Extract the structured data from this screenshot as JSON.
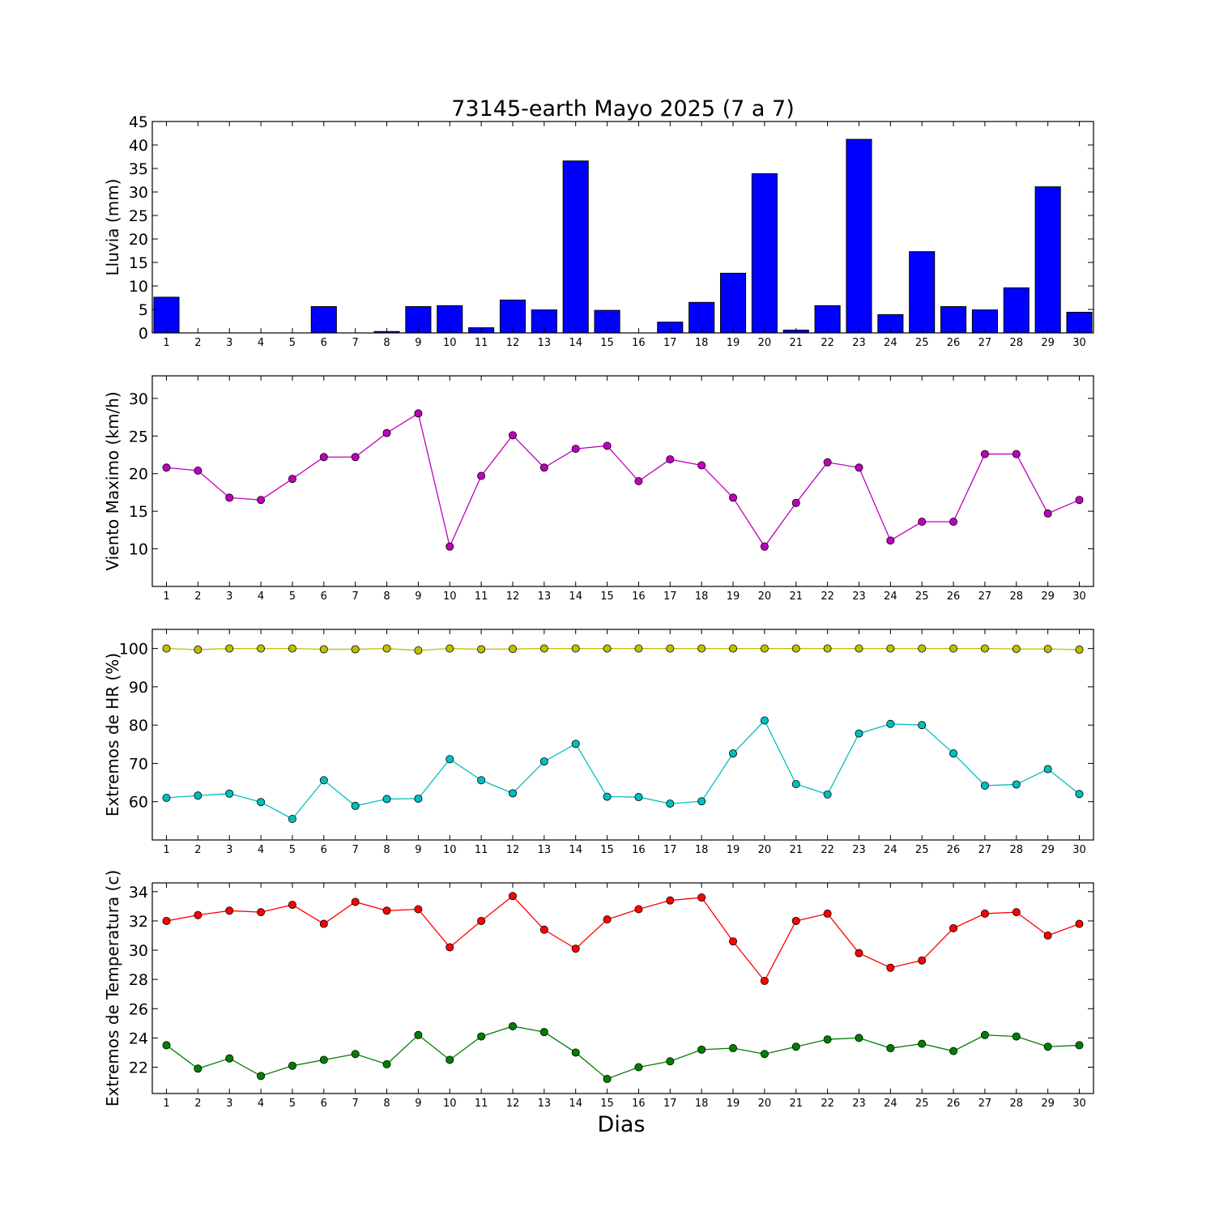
{
  "chart_data": [
    {
      "type": "bar",
      "title": "73145-earth Mayo 2025  (7 a 7)",
      "ylabel": "Lluvia (mm)",
      "xlabel": "",
      "x": [
        1,
        2,
        3,
        4,
        5,
        6,
        7,
        8,
        9,
        10,
        11,
        12,
        13,
        14,
        15,
        16,
        17,
        18,
        19,
        20,
        21,
        22,
        23,
        24,
        25,
        26,
        27,
        28,
        29,
        30
      ],
      "ylim": [
        0,
        45
      ],
      "yticks": [
        0,
        5,
        10,
        15,
        20,
        25,
        30,
        35,
        40,
        45
      ],
      "colors": {
        "bar": "#0000ff"
      },
      "values": [
        7.6,
        0,
        0,
        0,
        0,
        5.6,
        0,
        0.3,
        5.6,
        5.8,
        1.1,
        7.0,
        4.9,
        36.6,
        4.8,
        0,
        2.3,
        6.5,
        12.7,
        33.9,
        0.6,
        5.8,
        41.2,
        3.9,
        17.3,
        5.6,
        4.9,
        9.6,
        31.1,
        4.4
      ]
    },
    {
      "type": "line",
      "ylabel": "Viento Maximo (km/h)",
      "xlabel": "",
      "x": [
        1,
        2,
        3,
        4,
        5,
        6,
        7,
        8,
        9,
        10,
        11,
        12,
        13,
        14,
        15,
        16,
        17,
        18,
        19,
        20,
        21,
        22,
        23,
        24,
        25,
        26,
        27,
        28,
        29,
        30
      ],
      "ylim": [
        5,
        33
      ],
      "yticks": [
        10,
        15,
        20,
        25,
        30
      ],
      "series": [
        {
          "color": "#bf00bf",
          "values": [
            20.8,
            20.4,
            16.8,
            16.5,
            19.3,
            22.2,
            22.2,
            25.4,
            28.0,
            10.3,
            19.7,
            25.1,
            20.8,
            23.3,
            23.7,
            19.0,
            21.9,
            21.1,
            16.8,
            10.3,
            16.1,
            21.5,
            20.8,
            11.1,
            13.6,
            13.6,
            22.6,
            22.6,
            14.7,
            16.5
          ]
        }
      ]
    },
    {
      "type": "line",
      "ylabel": "Extremos de HR (%)",
      "xlabel": "",
      "x": [
        1,
        2,
        3,
        4,
        5,
        6,
        7,
        8,
        9,
        10,
        11,
        12,
        13,
        14,
        15,
        16,
        17,
        18,
        19,
        20,
        21,
        22,
        23,
        24,
        25,
        26,
        27,
        28,
        29,
        30
      ],
      "ylim": [
        50,
        105
      ],
      "yticks": [
        60,
        70,
        80,
        90,
        100
      ],
      "series": [
        {
          "color": "#bfbf00",
          "values": [
            100,
            99.7,
            100,
            100,
            100,
            99.8,
            99.8,
            100,
            99.5,
            100,
            99.8,
            99.9,
            100,
            100,
            100,
            100,
            100,
            100,
            100,
            100,
            100,
            100,
            100,
            100,
            100,
            100,
            100,
            99.9,
            99.9,
            99.7
          ]
        },
        {
          "color": "#00bfbf",
          "values": [
            61,
            61.6,
            62.1,
            59.9,
            55.5,
            65.6,
            58.9,
            60.7,
            60.8,
            71.1,
            65.6,
            62.2,
            70.5,
            75.1,
            61.3,
            61.2,
            59.5,
            60.1,
            72.6,
            81.2,
            64.6,
            61.9,
            77.8,
            80.3,
            80.0,
            72.6,
            64.2,
            64.5,
            68.5,
            62.0
          ]
        }
      ]
    },
    {
      "type": "line",
      "ylabel": "Extremos de Temperatura (c)",
      "xlabel": "Dias",
      "x": [
        1,
        2,
        3,
        4,
        5,
        6,
        7,
        8,
        9,
        10,
        11,
        12,
        13,
        14,
        15,
        16,
        17,
        18,
        19,
        20,
        21,
        22,
        23,
        24,
        25,
        26,
        27,
        28,
        29,
        30
      ],
      "ylim": [
        20.2,
        34.6
      ],
      "yticks": [
        22,
        24,
        26,
        28,
        30,
        32,
        34
      ],
      "series": [
        {
          "color": "#ff0000",
          "values": [
            32.0,
            32.4,
            32.7,
            32.6,
            33.1,
            31.8,
            33.3,
            32.7,
            32.8,
            30.2,
            32.0,
            33.7,
            31.4,
            30.1,
            32.1,
            32.8,
            33.4,
            33.6,
            30.6,
            27.9,
            32.0,
            32.5,
            29.8,
            28.8,
            29.3,
            31.5,
            32.5,
            32.6,
            31.0,
            31.8
          ]
        },
        {
          "color": "#007f00",
          "values": [
            23.5,
            21.9,
            22.6,
            21.4,
            22.1,
            22.5,
            22.9,
            22.2,
            24.2,
            22.5,
            24.1,
            24.8,
            24.4,
            23.0,
            21.2,
            22.0,
            22.4,
            23.2,
            23.3,
            22.9,
            23.4,
            23.9,
            24.0,
            23.3,
            23.6,
            23.1,
            24.2,
            24.1,
            23.4,
            23.5
          ]
        }
      ]
    }
  ]
}
